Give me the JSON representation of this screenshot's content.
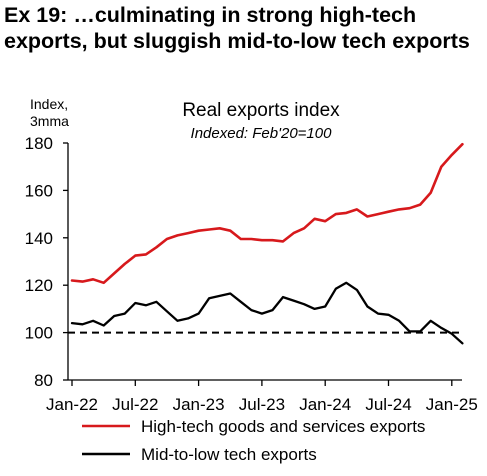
{
  "heading": "Ex 19: …culminating in strong high-tech exports, but sluggish mid-to-low tech exports",
  "chart_data": {
    "type": "line",
    "title": "Real exports index",
    "subtitle": "Indexed: Feb'20=100",
    "ylabel": "Index, 3mma",
    "xlabel": "",
    "ylim": [
      80,
      180
    ],
    "yticks": [
      80,
      100,
      120,
      140,
      160,
      180
    ],
    "xticks": [
      "Jan-22",
      "Jul-22",
      "Jan-23",
      "Jul-23",
      "Jan-24",
      "Jul-24",
      "Jan-25"
    ],
    "x": [
      "Jan-22",
      "Feb-22",
      "Mar-22",
      "Apr-22",
      "May-22",
      "Jun-22",
      "Jul-22",
      "Aug-22",
      "Sep-22",
      "Oct-22",
      "Nov-22",
      "Dec-22",
      "Jan-23",
      "Feb-23",
      "Mar-23",
      "Apr-23",
      "May-23",
      "Jun-23",
      "Jul-23",
      "Aug-23",
      "Sep-23",
      "Oct-23",
      "Nov-23",
      "Dec-23",
      "Jan-24",
      "Feb-24",
      "Mar-24",
      "Apr-24",
      "May-24",
      "Jun-24",
      "Jul-24",
      "Aug-24",
      "Sep-24",
      "Oct-24",
      "Nov-24",
      "Dec-24",
      "Jan-25",
      "Feb-25"
    ],
    "reference_line": {
      "y": 100,
      "style": "dashed"
    },
    "series": [
      {
        "name": "High-tech goods and services exports",
        "color": "#d7191c",
        "values": [
          122,
          121.5,
          122.5,
          121,
          125,
          129,
          132.5,
          133,
          136,
          139.5,
          141,
          142,
          143,
          143.5,
          144,
          143,
          139.5,
          139.5,
          139,
          139,
          138.5,
          142,
          144,
          148,
          147,
          150,
          150.5,
          152,
          149,
          150,
          151,
          152,
          152.5,
          154,
          159,
          170,
          175,
          179.5
        ]
      },
      {
        "name": "Mid-to-low tech exports",
        "color": "#000000",
        "values": [
          104,
          103.5,
          105,
          103,
          107,
          108,
          112.5,
          111.5,
          113,
          109,
          105,
          106,
          108,
          114.5,
          115.5,
          116.5,
          113,
          109.5,
          108,
          109.5,
          115,
          113.5,
          112,
          110,
          111,
          118.5,
          121,
          118,
          111,
          108,
          107.5,
          105,
          100.5,
          100.5,
          105,
          102,
          99.5,
          95.5
        ]
      }
    ],
    "legend": "bottom"
  }
}
